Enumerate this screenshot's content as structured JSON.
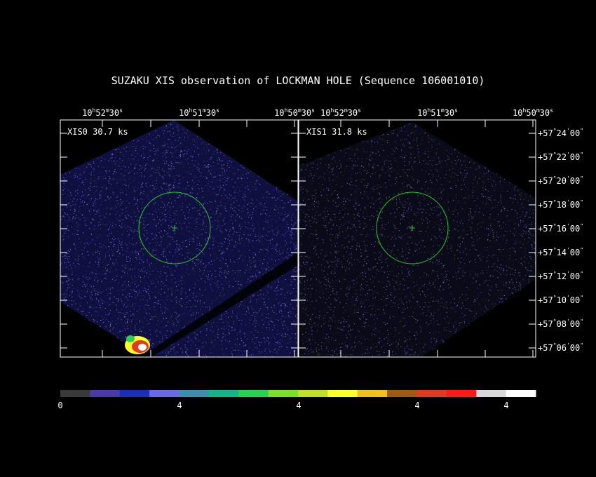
{
  "title": "SUZAKU XIS observation of LOCKMAN HOLE  (Sequence 106001010)",
  "ra_ticks": [
    {
      "h": "10",
      "m": "52",
      "s": "30"
    },
    {
      "h": "10",
      "m": "51",
      "s": "30"
    },
    {
      "h": "10",
      "m": "50",
      "s": "30"
    }
  ],
  "dec_ticks": [
    {
      "deg": "+57",
      "min": "24",
      "sec": "00"
    },
    {
      "deg": "+57",
      "min": "22",
      "sec": "00"
    },
    {
      "deg": "+57",
      "min": "20",
      "sec": "00"
    },
    {
      "deg": "+57",
      "min": "18",
      "sec": "00"
    },
    {
      "deg": "+57",
      "min": "16",
      "sec": "00"
    },
    {
      "deg": "+57",
      "min": "14",
      "sec": "00"
    },
    {
      "deg": "+57",
      "min": "12",
      "sec": "00"
    },
    {
      "deg": "+57",
      "min": "10",
      "sec": "00"
    },
    {
      "deg": "+57",
      "min": "08",
      "sec": "00"
    },
    {
      "deg": "+57",
      "min": "06",
      "sec": "00"
    }
  ],
  "panels": [
    {
      "name": "xis0",
      "label": "XIS0 30.7 ks"
    },
    {
      "name": "xis1",
      "label": "XIS1 31.8 ks"
    }
  ],
  "colorbar": {
    "colors": [
      "#3a3a3a",
      "#4a3aa8",
      "#1a2fb8",
      "#6a6ae8",
      "#3a8fb0",
      "#1ab08a",
      "#2ad050",
      "#7ae02a",
      "#c0e02a",
      "#ffff2a",
      "#f0c020",
      "#a05a10",
      "#e03a20",
      "#ff1a1a",
      "#d8d8d8",
      "#ffffff"
    ],
    "tick_labels": [
      "0",
      "4",
      "4",
      "4",
      "4"
    ]
  },
  "colors": {
    "background": "#000000",
    "frame": "#ffffff",
    "region_circle": "#22cc22",
    "events": "#7a7ad8"
  }
}
